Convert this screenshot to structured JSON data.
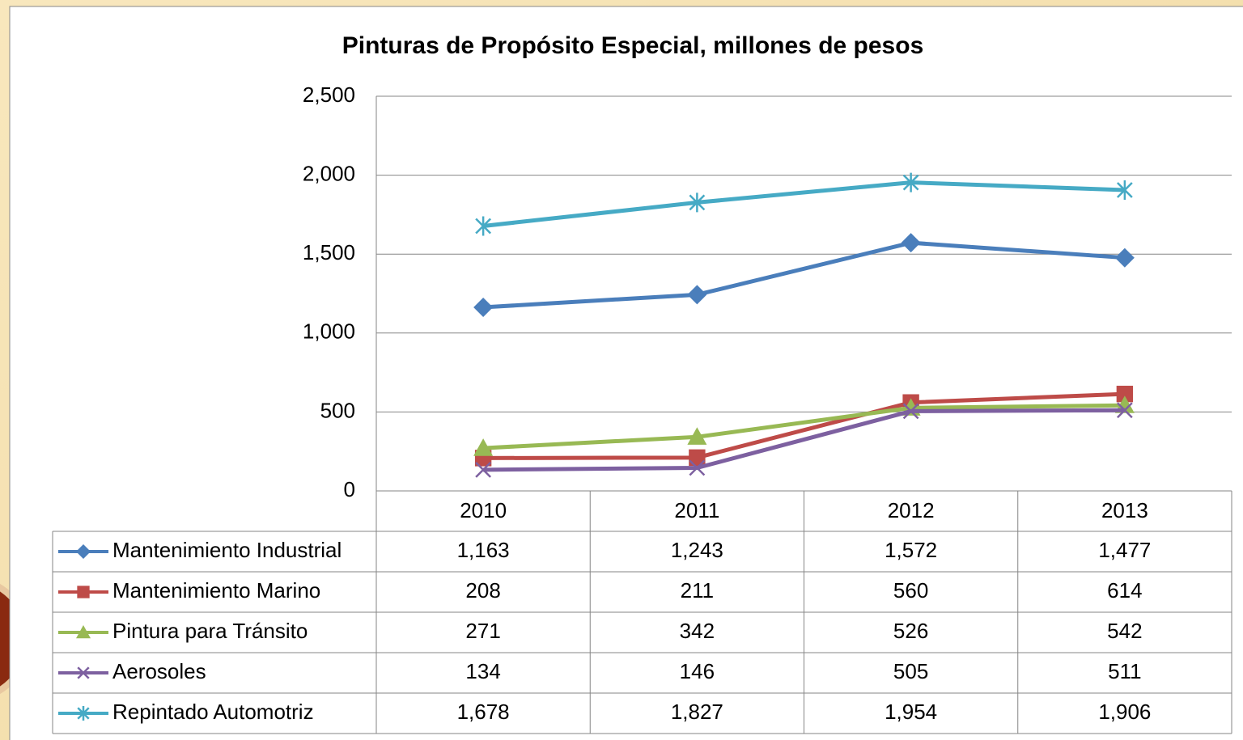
{
  "chart_data": {
    "type": "line",
    "title": "Pinturas de Propósito Especial, millones de pesos",
    "categories": [
      "2010",
      "2011",
      "2012",
      "2013"
    ],
    "ylim": [
      0,
      2500
    ],
    "yticks": [
      0,
      500,
      {
        "value": 1000,
        "label": "1,000"
      },
      {
        "value": 1500,
        "label": "1,500"
      },
      {
        "value": 2000,
        "label": "2,000"
      },
      {
        "value": 2500,
        "label": "2,500"
      }
    ],
    "grid": true,
    "series": [
      {
        "name": "Mantenimiento Industrial",
        "color": "#4a7ebb",
        "marker": "diamond",
        "values": [
          1163,
          1243,
          1572,
          1477
        ],
        "value_labels": [
          "1,163",
          "1,243",
          "1,572",
          "1,477"
        ]
      },
      {
        "name": "Mantenimiento Marino",
        "color": "#be4b48",
        "marker": "square",
        "values": [
          208,
          211,
          560,
          614
        ],
        "value_labels": [
          "208",
          "211",
          "560",
          "614"
        ]
      },
      {
        "name": "Pintura para Tránsito",
        "color": "#98b954",
        "marker": "triangle",
        "values": [
          271,
          342,
          526,
          542
        ],
        "value_labels": [
          "271",
          "342",
          "526",
          "542"
        ]
      },
      {
        "name": "Aerosoles",
        "color": "#7d60a0",
        "marker": "x",
        "values": [
          134,
          146,
          505,
          511
        ],
        "value_labels": [
          "134",
          "146",
          "505",
          "511"
        ]
      },
      {
        "name": "Repintado Automotriz",
        "color": "#46aac5",
        "marker": "star",
        "values": [
          1678,
          1827,
          1954,
          1906
        ],
        "value_labels": [
          "1,678",
          "1,827",
          "1,954",
          "1,906"
        ]
      }
    ]
  }
}
